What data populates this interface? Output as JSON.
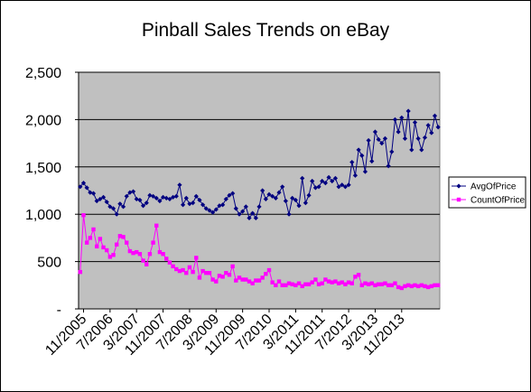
{
  "chart_data": {
    "type": "line",
    "title": "Pinball Sales Trends on eBay",
    "xlabel": "",
    "ylabel": "",
    "ylim": [
      0,
      2500
    ],
    "yticks": [
      0,
      500,
      1000,
      1500,
      2000,
      2500
    ],
    "ytick_labels": [
      "-",
      "500",
      "1,000",
      "1,500",
      "2,000",
      "2,500"
    ],
    "x_start": "10/2005",
    "x_end": "2/2014",
    "xtick_labels": [
      "11/2005",
      "7/2006",
      "3/2007",
      "11/2007",
      "7/2008",
      "3/2009",
      "11/2009",
      "7/2010",
      "3/2011",
      "11/2011",
      "7/2012",
      "3/2013",
      "11/2013"
    ],
    "grid": "horizontal-only",
    "plot_background": "#c0c0c0",
    "legend": "right",
    "series": [
      {
        "name": "AvgOfPrice",
        "color": "#000080",
        "marker": "diamond",
        "values": [
          1290,
          1330,
          1280,
          1230,
          1220,
          1140,
          1160,
          1180,
          1130,
          1080,
          1060,
          1000,
          1110,
          1080,
          1190,
          1230,
          1240,
          1160,
          1150,
          1090,
          1120,
          1200,
          1190,
          1170,
          1140,
          1180,
          1170,
          1160,
          1180,
          1190,
          1310,
          1100,
          1170,
          1110,
          1120,
          1190,
          1150,
          1100,
          1060,
          1040,
          1020,
          1050,
          1090,
          1100,
          1160,
          1200,
          1220,
          1060,
          1000,
          1030,
          1080,
          960,
          1010,
          960,
          1080,
          1250,
          1160,
          1210,
          1190,
          1170,
          1230,
          1290,
          1140,
          1000,
          1170,
          1150,
          1090,
          1380,
          1120,
          1200,
          1350,
          1280,
          1290,
          1350,
          1330,
          1390,
          1350,
          1380,
          1290,
          1310,
          1290,
          1310,
          1550,
          1410,
          1680,
          1620,
          1450,
          1780,
          1560,
          1870,
          1790,
          1750,
          1800,
          1510,
          1660,
          2000,
          1870,
          2020,
          1800,
          2090,
          1680,
          1970,
          1800,
          1680,
          1810,
          1940,
          1860,
          2040,
          1920
        ]
      },
      {
        "name": "CountOfPrice",
        "color": "#ff00ff",
        "marker": "square",
        "values": [
          390,
          990,
          700,
          750,
          840,
          660,
          740,
          650,
          620,
          550,
          570,
          680,
          770,
          760,
          700,
          610,
          590,
          600,
          580,
          510,
          470,
          580,
          700,
          880,
          600,
          580,
          530,
          490,
          450,
          420,
          400,
          410,
          380,
          440,
          390,
          540,
          330,
          400,
          380,
          380,
          310,
          290,
          350,
          340,
          380,
          360,
          450,
          300,
          330,
          310,
          310,
          290,
          270,
          300,
          300,
          330,
          370,
          410,
          280,
          250,
          290,
          250,
          250,
          270,
          260,
          250,
          270,
          240,
          260,
          260,
          280,
          310,
          260,
          270,
          310,
          290,
          280,
          290,
          270,
          280,
          260,
          280,
          270,
          340,
          360,
          250,
          270,
          260,
          270,
          250,
          260,
          260,
          270,
          250,
          250,
          270,
          230,
          220,
          240,
          250,
          240,
          250,
          240,
          250,
          240,
          230,
          240,
          250,
          250
        ]
      }
    ]
  }
}
